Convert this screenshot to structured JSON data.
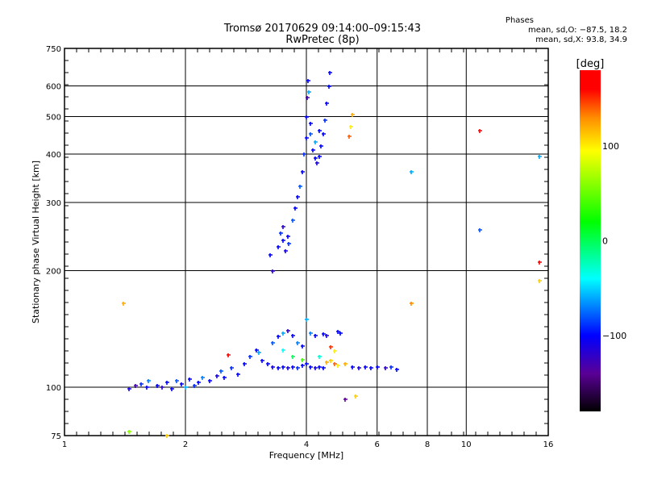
{
  "chart_data": {
    "type": "scatter",
    "title": "Tromsø 20170629 09:14:00–09:15:43",
    "subtitle": "RwPretec (8p)",
    "xlabel": "Frequency [MHz]",
    "ylabel": "Stationary phase Virtual Height [km]",
    "xscale": "log",
    "yscale": "log",
    "xlim": [
      1,
      16
    ],
    "ylim": [
      75,
      750
    ],
    "xticks": [
      1,
      2,
      4,
      6,
      8,
      10,
      16
    ],
    "xtick_labels": [
      "1",
      "2",
      "4",
      "6",
      "8",
      "10",
      "16"
    ],
    "xgrid": [
      2,
      4,
      6,
      8,
      10
    ],
    "yticks": [
      75,
      100,
      200,
      300,
      400,
      500,
      600,
      750
    ],
    "ytick_labels": [
      "75",
      "100",
      "200",
      "300",
      "400",
      "500",
      "600",
      "750"
    ],
    "ygrid": [
      100,
      200,
      300,
      400,
      500,
      600
    ],
    "grid": true,
    "stats": {
      "heading": "Phases",
      "o_line": "mean, sd,O: −87.5, 18.2",
      "x_line": "mean, sd,X:  93.8, 34.9"
    },
    "colorbar": {
      "label": "[deg]",
      "range": [
        -180,
        180
      ],
      "ticks": [
        100,
        0,
        -100
      ],
      "tick_labels": [
        "100",
        "0",
        "−100"
      ],
      "stops": [
        [
          -180,
          "#000000"
        ],
        [
          -140,
          "#5a0096"
        ],
        [
          -100,
          "#0000ff"
        ],
        [
          -40,
          "#00ffff"
        ],
        [
          20,
          "#00ff00"
        ],
        [
          95,
          "#ffff00"
        ],
        [
          130,
          "#ff8c00"
        ],
        [
          160,
          "#ff0000"
        ],
        [
          180,
          "#ff0000"
        ]
      ]
    },
    "points": [
      [
        1.45,
        99,
        -110
      ],
      [
        1.5,
        101,
        -130
      ],
      [
        1.55,
        102,
        -90
      ],
      [
        1.6,
        100,
        -100
      ],
      [
        1.62,
        104,
        -70
      ],
      [
        1.7,
        101,
        -100
      ],
      [
        1.75,
        100,
        -120
      ],
      [
        1.8,
        103,
        -100
      ],
      [
        1.85,
        99,
        -100
      ],
      [
        1.9,
        104,
        -80
      ],
      [
        1.95,
        102,
        -100
      ],
      [
        2.0,
        100,
        -60
      ],
      [
        2.05,
        105,
        -100
      ],
      [
        2.1,
        101,
        -90
      ],
      [
        2.15,
        103,
        -100
      ],
      [
        2.2,
        106,
        -70
      ],
      [
        2.3,
        104,
        -100
      ],
      [
        2.4,
        107,
        -110
      ],
      [
        2.45,
        110,
        -80
      ],
      [
        2.5,
        106,
        -100
      ],
      [
        2.6,
        112,
        -90
      ],
      [
        2.7,
        108,
        -100
      ],
      [
        2.8,
        115,
        -100
      ],
      [
        2.9,
        120,
        -90
      ],
      [
        3.0,
        125,
        -100
      ],
      [
        3.05,
        123,
        -60
      ],
      [
        3.1,
        117,
        -100
      ],
      [
        2.55,
        121,
        170
      ],
      [
        3.2,
        115,
        -100
      ],
      [
        3.3,
        113,
        -110
      ],
      [
        3.4,
        112,
        -100
      ],
      [
        3.5,
        113,
        -100
      ],
      [
        3.6,
        112,
        -110
      ],
      [
        3.7,
        113,
        -100
      ],
      [
        3.8,
        112,
        -90
      ],
      [
        3.9,
        114,
        -100
      ],
      [
        4.0,
        115,
        -100
      ],
      [
        4.1,
        113,
        -100
      ],
      [
        4.2,
        112,
        -110
      ],
      [
        4.3,
        113,
        -100
      ],
      [
        4.4,
        112,
        -100
      ],
      [
        4.5,
        116,
        120
      ],
      [
        4.6,
        117,
        110
      ],
      [
        4.7,
        115,
        140
      ],
      [
        4.8,
        114,
        100
      ],
      [
        5.0,
        115,
        120
      ],
      [
        5.2,
        113,
        -100
      ],
      [
        5.4,
        112,
        -110
      ],
      [
        5.6,
        113,
        -100
      ],
      [
        5.8,
        112,
        -100
      ],
      [
        6.0,
        113,
        -100
      ],
      [
        6.3,
        112,
        -120
      ],
      [
        6.5,
        113,
        -90
      ],
      [
        6.7,
        111,
        -100
      ],
      [
        3.3,
        130,
        -80
      ],
      [
        3.4,
        135,
        -100
      ],
      [
        3.5,
        138,
        -60
      ],
      [
        3.6,
        140,
        -120
      ],
      [
        3.7,
        136,
        -100
      ],
      [
        3.8,
        130,
        -70
      ],
      [
        3.9,
        128,
        -100
      ],
      [
        4.0,
        150,
        -60
      ],
      [
        4.1,
        138,
        -70
      ],
      [
        4.2,
        136,
        -100
      ],
      [
        4.4,
        137,
        -100
      ],
      [
        4.5,
        136,
        -110
      ],
      [
        4.8,
        139,
        -100
      ],
      [
        4.85,
        138,
        -100
      ],
      [
        3.5,
        125,
        -40
      ],
      [
        3.7,
        120,
        0
      ],
      [
        3.9,
        118,
        40
      ],
      [
        4.3,
        120,
        -30
      ],
      [
        4.6,
        127,
        150
      ],
      [
        4.7,
        124,
        100
      ],
      [
        3.25,
        220,
        -100
      ],
      [
        3.3,
        200,
        -120
      ],
      [
        3.4,
        230,
        -100
      ],
      [
        3.45,
        250,
        -90
      ],
      [
        3.5,
        240,
        -100
      ],
      [
        3.55,
        225,
        -110
      ],
      [
        3.6,
        245,
        -100
      ],
      [
        3.5,
        260,
        -120
      ],
      [
        3.62,
        235,
        -90
      ],
      [
        3.7,
        270,
        -80
      ],
      [
        3.75,
        290,
        -100
      ],
      [
        3.8,
        310,
        -100
      ],
      [
        3.85,
        330,
        -80
      ],
      [
        3.9,
        360,
        -100
      ],
      [
        3.95,
        400,
        -90
      ],
      [
        4.0,
        440,
        -100
      ],
      [
        4.0,
        500,
        -100
      ],
      [
        4.02,
        560,
        -130
      ],
      [
        4.03,
        620,
        -100
      ],
      [
        4.05,
        580,
        -60
      ],
      [
        4.1,
        450,
        -80
      ],
      [
        4.15,
        410,
        -100
      ],
      [
        4.2,
        390,
        -100
      ],
      [
        4.25,
        380,
        -110
      ],
      [
        4.3,
        395,
        -100
      ],
      [
        4.35,
        420,
        -100
      ],
      [
        4.4,
        450,
        -100
      ],
      [
        4.45,
        490,
        -90
      ],
      [
        4.5,
        540,
        -100
      ],
      [
        4.55,
        600,
        -100
      ],
      [
        4.58,
        650,
        -100
      ],
      [
        4.2,
        430,
        -60
      ],
      [
        4.3,
        460,
        -100
      ],
      [
        4.1,
        480,
        -100
      ],
      [
        1.4,
        165,
        120
      ],
      [
        1.45,
        77,
        60
      ],
      [
        1.8,
        75,
        110
      ],
      [
        5.2,
        505,
        120
      ],
      [
        5.15,
        470,
        100
      ],
      [
        5.1,
        445,
        140
      ],
      [
        7.3,
        360,
        -60
      ],
      [
        7.3,
        165,
        130
      ],
      [
        10.8,
        460,
        160
      ],
      [
        10.8,
        255,
        -80
      ],
      [
        15.2,
        210,
        170
      ],
      [
        15.2,
        188,
        110
      ],
      [
        15.2,
        395,
        -60
      ],
      [
        5.0,
        93,
        -140
      ],
      [
        5.3,
        95,
        110
      ]
    ]
  }
}
